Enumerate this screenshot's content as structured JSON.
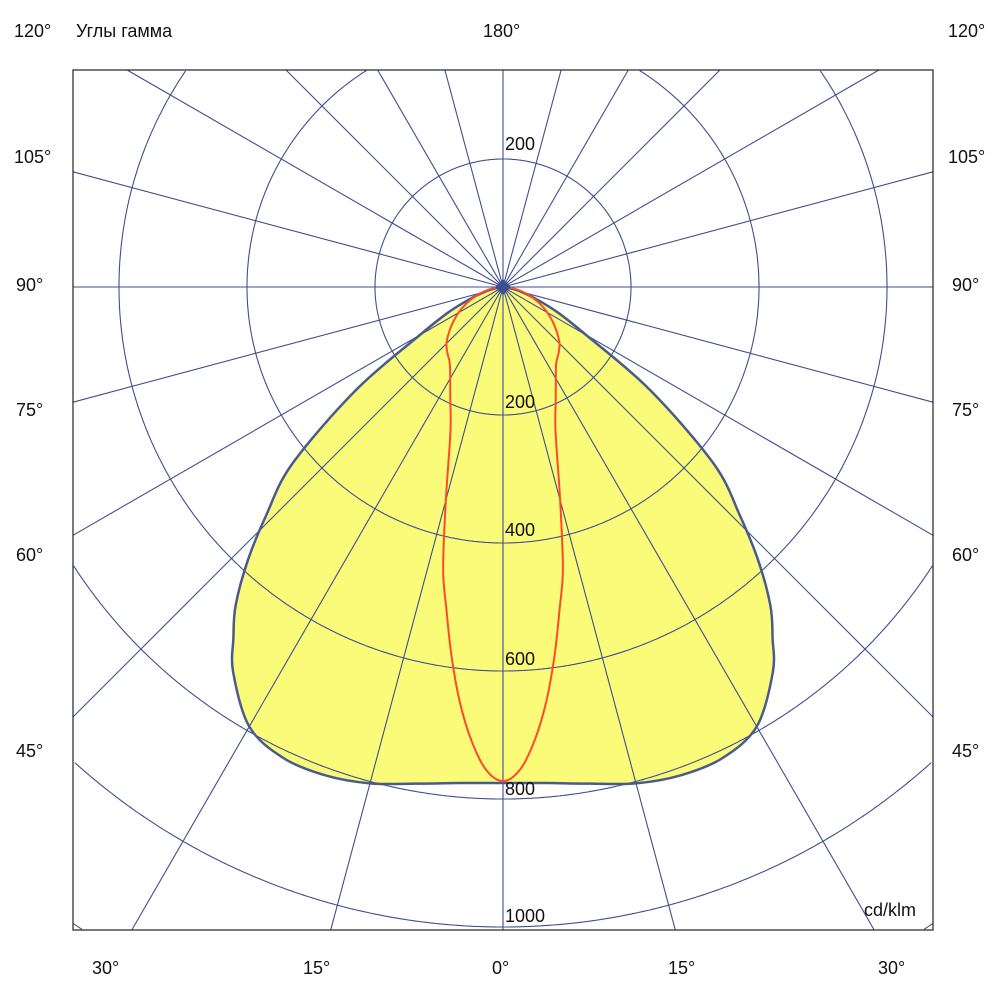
{
  "chart_data": {
    "type": "polar",
    "title": "Углы гамма",
    "unit_label": "cd/klm",
    "radial_ticks": [
      "200",
      "400",
      "600",
      "800",
      "1000"
    ],
    "radial_tick_upper": "200",
    "radial_range": [
      0,
      1200
    ],
    "grid": true,
    "angle_step_deg": 15,
    "left_angle_labels": [
      "120°",
      "105°",
      "90°",
      "75°",
      "60°",
      "45°"
    ],
    "right_angle_labels": [
      "120°",
      "105°",
      "90°",
      "75°",
      "60°",
      "45°"
    ],
    "top_angle_label": "180°",
    "bottom_angle_labels": [
      "30°",
      "15°",
      "0°",
      "15°",
      "30°"
    ],
    "series": [
      {
        "style": "filled",
        "color": "#4a5a8c",
        "fill": "#fbfb7a",
        "gamma": [
          0,
          5,
          10,
          15,
          20,
          25,
          30,
          35,
          37.5,
          40,
          43,
          46,
          50,
          55,
          60,
          65,
          70,
          75,
          80,
          85,
          90
        ],
        "values": [
          775,
          778,
          788,
          803,
          812,
          812,
          793,
          735,
          692,
          650,
          585,
          515,
          430,
          280,
          150,
          95,
          55,
          30,
          15,
          6,
          0
        ]
      },
      {
        "style": "line",
        "color": "#ff4a2a",
        "gamma": [
          0,
          2,
          4,
          6,
          8,
          10,
          12,
          15,
          20,
          25,
          30,
          35,
          40,
          45,
          50,
          55,
          60,
          65,
          70,
          75,
          80,
          85,
          90
        ],
        "values": [
          772,
          755,
          710,
          650,
          580,
          510,
          450,
          345,
          240,
          195,
          165,
          145,
          135,
          125,
          110,
          95,
          80,
          65,
          50,
          35,
          22,
          10,
          0
        ]
      }
    ],
    "colors": {
      "grid": "#3d4f8f",
      "frame": "#222222"
    }
  }
}
